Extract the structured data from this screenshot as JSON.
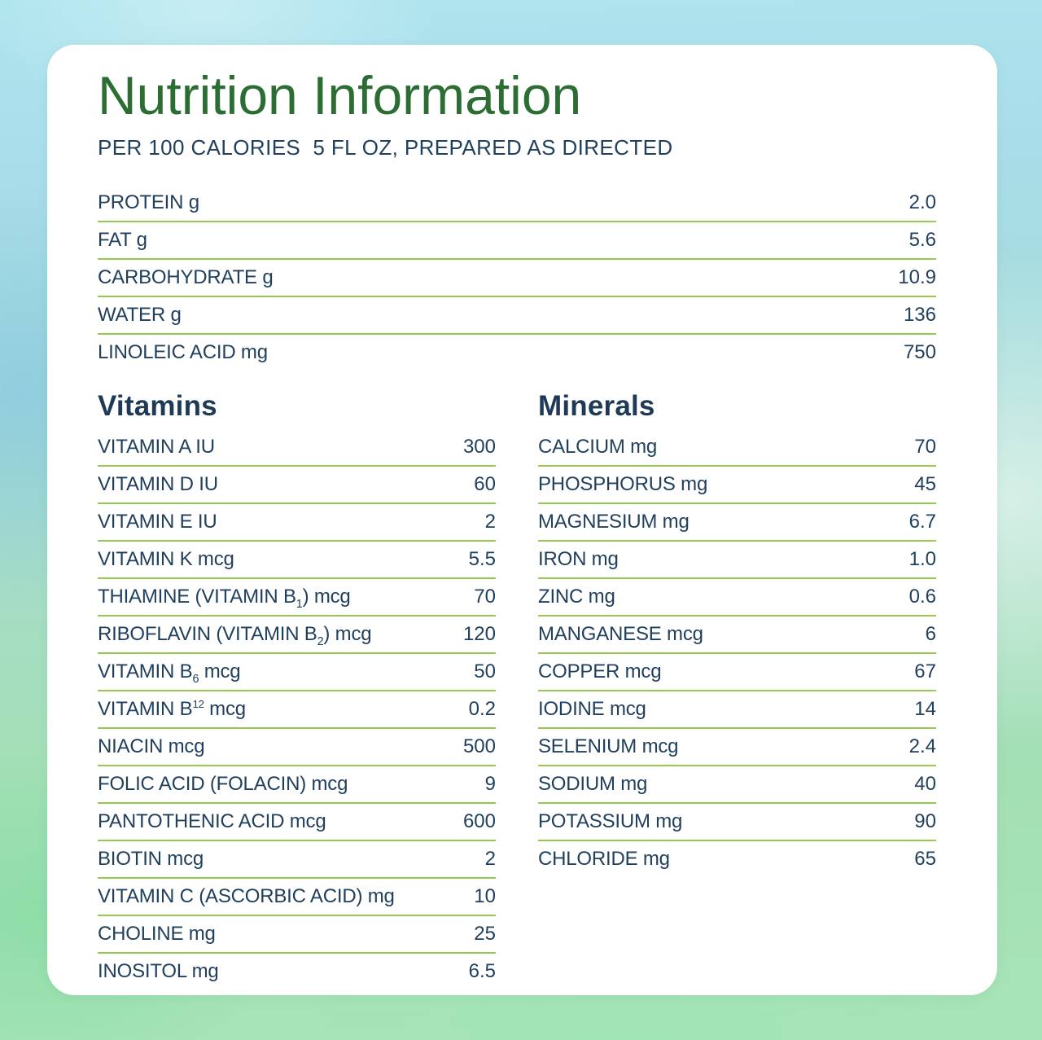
{
  "page": {
    "title": "Nutrition Information",
    "subtitle": "PER 100 CALORIES  5 FL OZ, PREPARED AS DIRECTED"
  },
  "colors": {
    "title_green": "#2c6d33",
    "text_navy": "#21405e",
    "rule_green": "#96c94d",
    "card_white": "#ffffff",
    "background_cyan": "#aee5ee",
    "background_green": "#a7e4b6"
  },
  "macros": {
    "rows": [
      {
        "label": "PROTEIN g",
        "value": "2.0"
      },
      {
        "label": "FAT g",
        "value": "5.6"
      },
      {
        "label": "CARBOHYDRATE g",
        "value": "10.9"
      },
      {
        "label": "WATER g",
        "value": "136"
      },
      {
        "label": "LINOLEIC ACID mg",
        "value": "750"
      }
    ]
  },
  "vitamins": {
    "heading": "Vitamins",
    "rows": [
      {
        "label": "VITAMIN A IU",
        "value": "300"
      },
      {
        "label": "VITAMIN D IU",
        "value": "60"
      },
      {
        "label": "VITAMIN E IU",
        "value": "2"
      },
      {
        "label": "VITAMIN K mcg",
        "value": "5.5"
      },
      {
        "label": "THIAMINE (VITAMIN B_{1}) mcg",
        "value": "70"
      },
      {
        "label": "RIBOFLAVIN (VITAMIN B_{2}) mcg",
        "value": "120"
      },
      {
        "label": "VITAMIN B_{6} mcg",
        "value": "50"
      },
      {
        "label": "VITAMIN B^{12} mcg",
        "value": "0.2"
      },
      {
        "label": "NIACIN mcg",
        "value": "500"
      },
      {
        "label": "FOLIC ACID (FOLACIN) mcg",
        "value": "9"
      },
      {
        "label": "PANTOTHENIC ACID mcg",
        "value": "600"
      },
      {
        "label": "BIOTIN mcg",
        "value": "2"
      },
      {
        "label": "VITAMIN C (ASCORBIC ACID) mg",
        "value": "10"
      },
      {
        "label": "CHOLINE mg",
        "value": "25"
      },
      {
        "label": "INOSITOL mg",
        "value": "6.5"
      }
    ]
  },
  "minerals": {
    "heading": "Minerals",
    "rows": [
      {
        "label": "CALCIUM mg",
        "value": "70"
      },
      {
        "label": "PHOSPHORUS mg",
        "value": "45"
      },
      {
        "label": "MAGNESIUM mg",
        "value": "6.7"
      },
      {
        "label": "IRON mg",
        "value": "1.0"
      },
      {
        "label": "ZINC mg",
        "value": "0.6"
      },
      {
        "label": "MANGANESE mcg",
        "value": "6"
      },
      {
        "label": "COPPER mcg",
        "value": "67"
      },
      {
        "label": "IODINE mcg",
        "value": "14"
      },
      {
        "label": "SELENIUM mcg",
        "value": "2.4"
      },
      {
        "label": "SODIUM mg",
        "value": "40"
      },
      {
        "label": "POTASSIUM mg",
        "value": "90"
      },
      {
        "label": "CHLORIDE mg",
        "value": "65"
      }
    ]
  }
}
